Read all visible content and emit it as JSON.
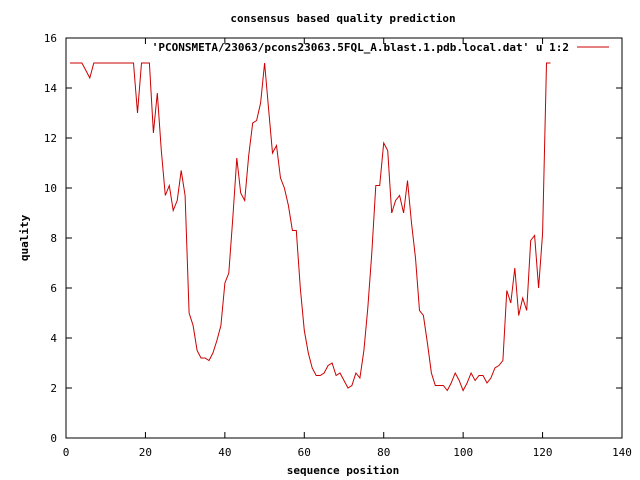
{
  "chart_data": {
    "type": "line",
    "title": "consensus based quality prediction",
    "xlabel": "sequence position",
    "ylabel": "quality",
    "xlim": [
      0,
      140
    ],
    "ylim": [
      0,
      16
    ],
    "xticks": [
      0,
      20,
      40,
      60,
      80,
      100,
      120,
      140
    ],
    "yticks": [
      0,
      2,
      4,
      6,
      8,
      10,
      12,
      14,
      16
    ],
    "grid": false,
    "legend_position": "top-right",
    "series": [
      {
        "name": "'PCONSMETA/23063/pcons23063.5FQL_A.blast.1.pdb.local.dat' u 1:2",
        "color": "#cc0000",
        "x": [
          1,
          2,
          3,
          4,
          5,
          6,
          7,
          8,
          9,
          10,
          11,
          12,
          13,
          14,
          15,
          16,
          17,
          18,
          19,
          20,
          21,
          22,
          23,
          24,
          25,
          26,
          27,
          28,
          29,
          30,
          31,
          32,
          33,
          34,
          35,
          36,
          37,
          38,
          39,
          40,
          41,
          42,
          43,
          44,
          45,
          46,
          47,
          48,
          49,
          50,
          51,
          52,
          53,
          54,
          55,
          56,
          57,
          58,
          59,
          60,
          61,
          62,
          63,
          64,
          65,
          66,
          67,
          68,
          69,
          70,
          71,
          72,
          73,
          74,
          75,
          76,
          77,
          78,
          79,
          80,
          81,
          82,
          83,
          84,
          85,
          86,
          87,
          88,
          89,
          90,
          91,
          92,
          93,
          94,
          95,
          96,
          97,
          98,
          99,
          100,
          101,
          102,
          103,
          104,
          105,
          106,
          107,
          108,
          109,
          110,
          111,
          112,
          113,
          114,
          115,
          116,
          117,
          118,
          119,
          120,
          121,
          122
        ],
        "y": [
          15,
          15,
          15,
          15,
          14.7,
          14.4,
          15,
          15,
          15,
          15,
          15,
          15,
          15,
          15,
          15,
          15,
          15,
          13,
          15,
          15,
          15,
          12.2,
          13.8,
          11.5,
          9.7,
          10.1,
          9.1,
          9.5,
          10.7,
          9.7,
          5,
          4.5,
          3.5,
          3.2,
          3.2,
          3.1,
          3.4,
          3.9,
          4.5,
          6.2,
          6.6,
          8.8,
          11.2,
          9.8,
          9.5,
          11.3,
          12.6,
          12.7,
          13.4,
          15,
          13.2,
          11.4,
          11.7,
          10.4,
          10,
          9.3,
          8.3,
          8.3,
          6,
          4.3,
          3.4,
          2.8,
          2.5,
          2.5,
          2.6,
          2.9,
          3,
          2.5,
          2.6,
          2.3,
          2,
          2.1,
          2.6,
          2.4,
          3.5,
          5.2,
          7.4,
          10.1,
          10.1,
          11.8,
          11.5,
          9,
          9.5,
          9.7,
          9,
          10.3,
          8.6,
          7.2,
          5.1,
          4.9,
          3.8,
          2.6,
          2.1,
          2.1,
          2.1,
          1.9,
          2.2,
          2.6,
          2.3,
          1.9,
          2.2,
          2.6,
          2.3,
          2.5,
          2.5,
          2.2,
          2.4,
          2.8,
          2.9,
          3.1,
          5.9,
          5.4,
          6.8,
          4.9,
          5.6,
          5.1,
          7.9,
          8.1,
          6,
          8.2,
          15,
          15
        ]
      }
    ]
  }
}
